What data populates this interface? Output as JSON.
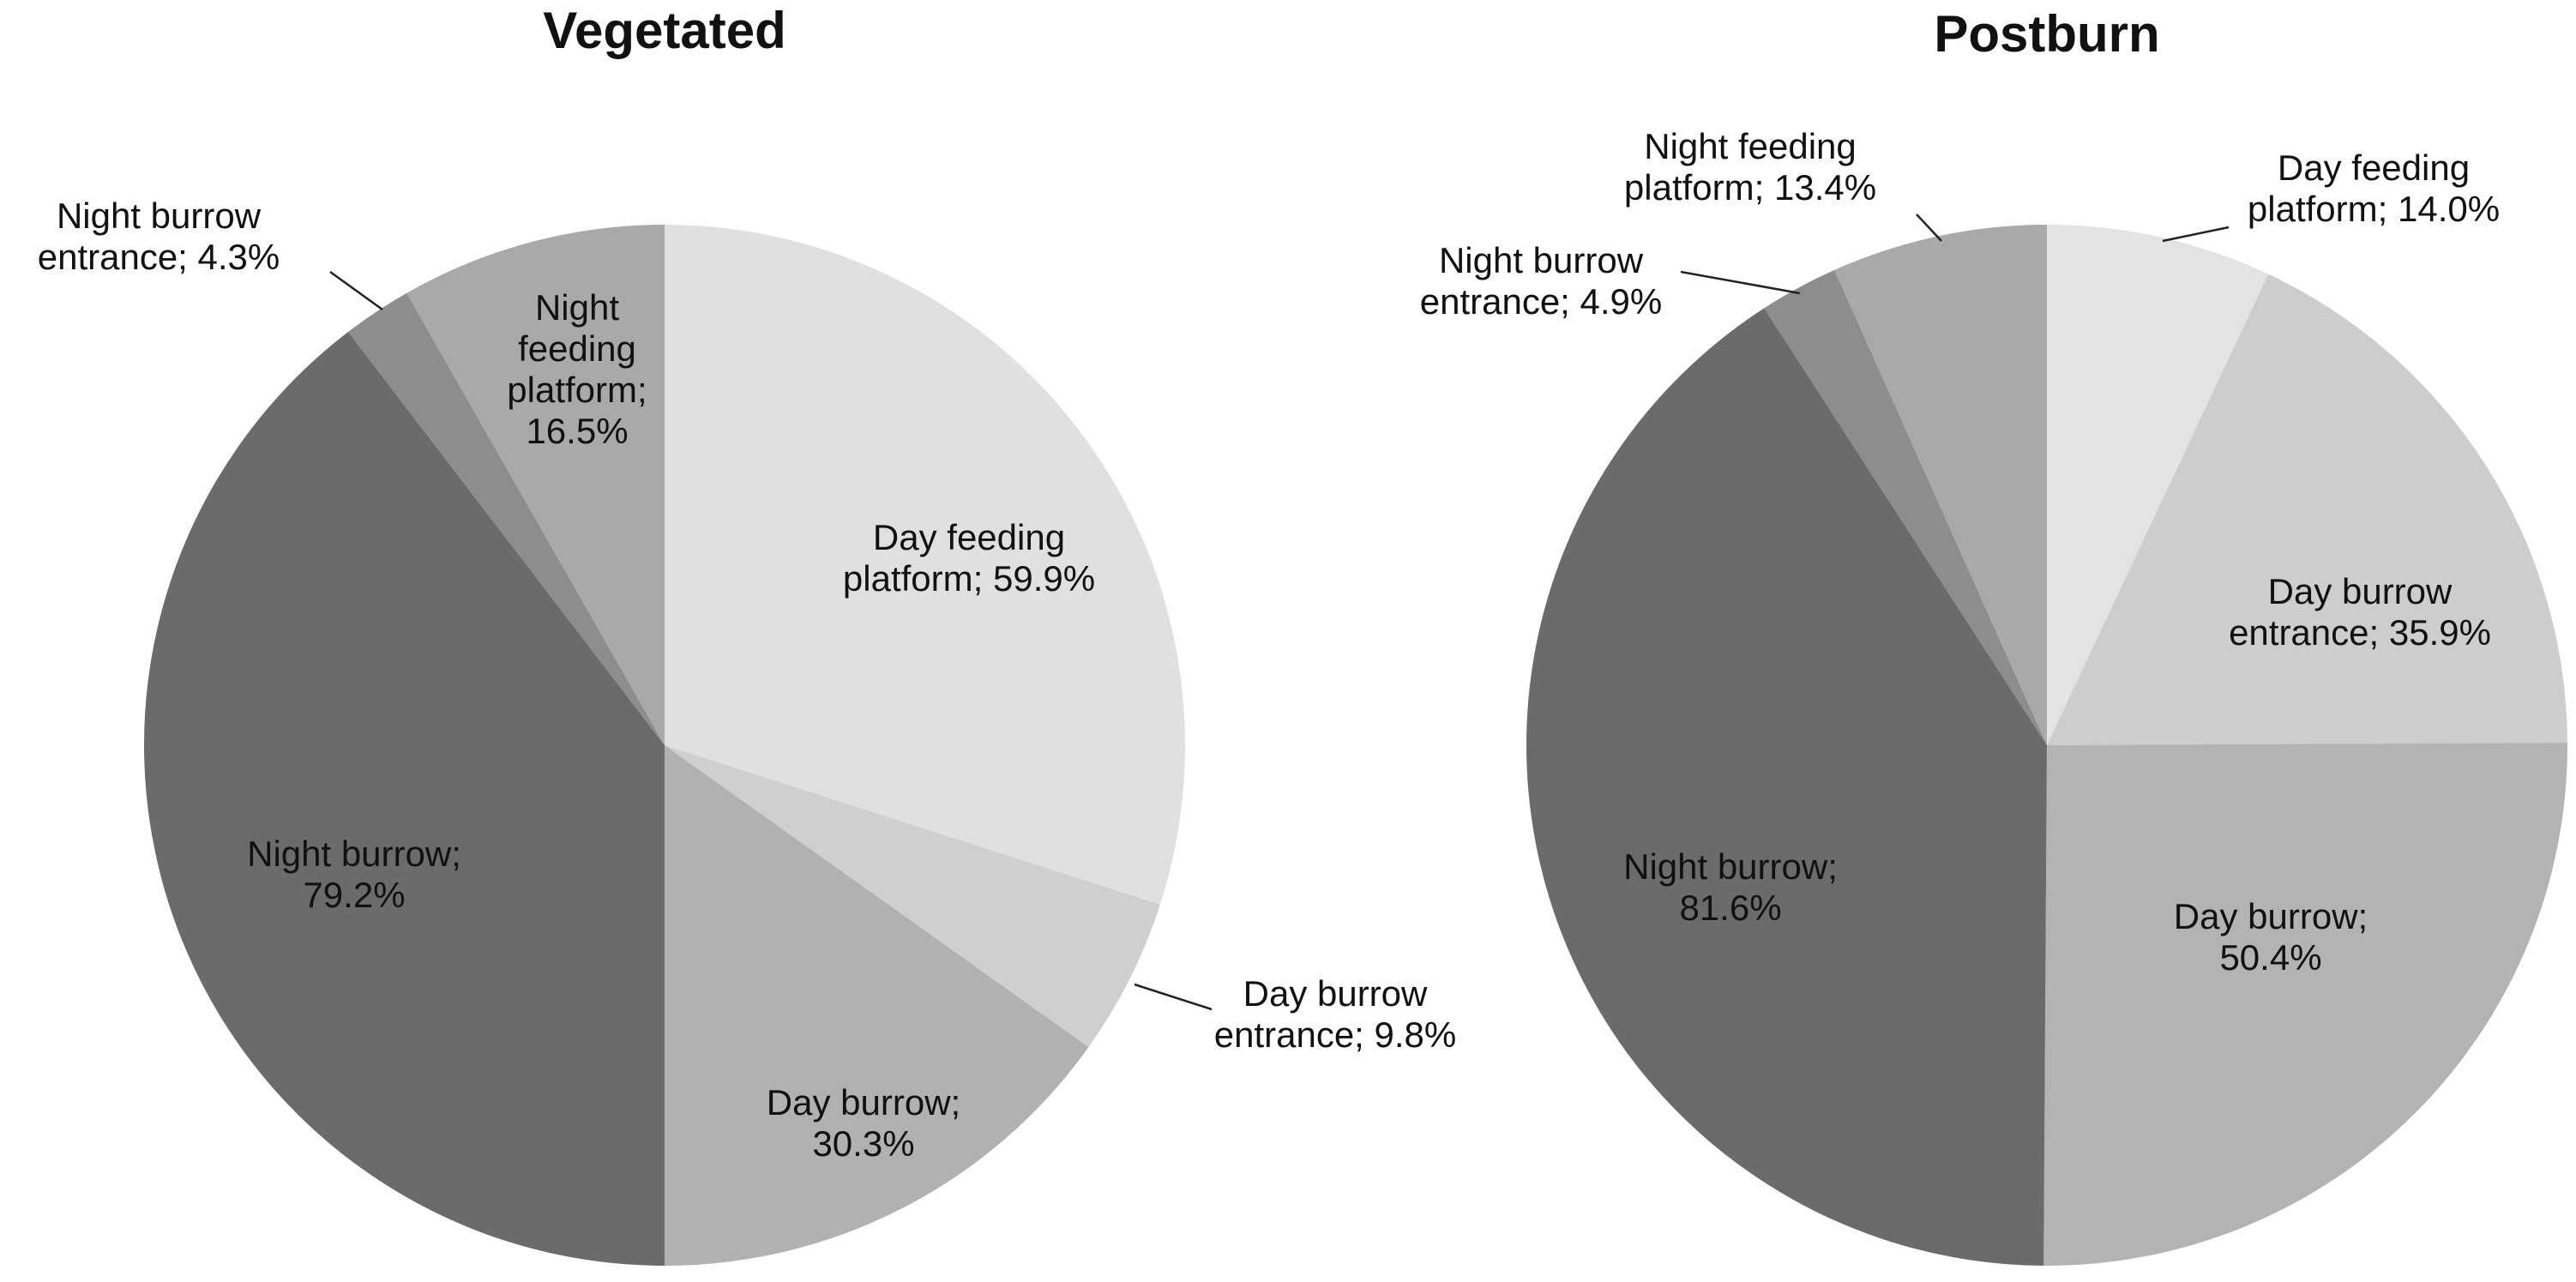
{
  "chart_data": [
    {
      "type": "pie",
      "title": "Vegetated",
      "labels": [
        "Day feeding platform; 59.9%",
        "Day burrow entrance; 9.8%",
        "Day burrow; 30.3%",
        "Night burrow; 79.2%",
        "Night burrow entrance; 4.3%",
        "Night feeding platform; 16.5%"
      ],
      "values": [
        59.9,
        9.8,
        30.3,
        79.2,
        4.3,
        16.5
      ],
      "colors": [
        "#e0e0e0",
        "#cfcfcf",
        "#b1b1b1",
        "#6b6b6b",
        "#8d8d8d",
        "#a9a9a9"
      ]
    },
    {
      "type": "pie",
      "title": "Postburn",
      "labels": [
        "Day feeding platform; 14.0%",
        "Day burrow entrance; 35.9%",
        "Day burrow; 50.4%",
        "Night burrow; 81.6%",
        "Night burrow entrance; 4.9%",
        "Night feeding platform; 13.4%"
      ],
      "values": [
        14.0,
        35.9,
        50.4,
        81.6,
        4.9,
        13.4
      ],
      "colors": [
        "#e3e3e3",
        "#cdcdcd",
        "#b3b3b3",
        "#6b6b6b",
        "#8d8d8d",
        "#a9a9a9"
      ]
    }
  ]
}
